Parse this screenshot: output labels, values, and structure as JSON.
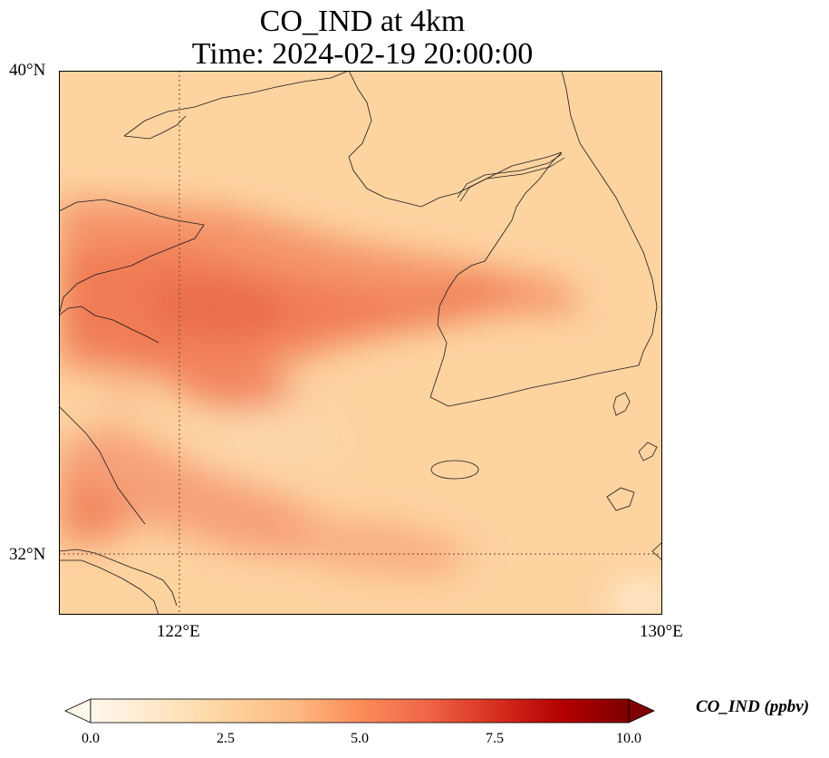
{
  "title": {
    "line1": "CO_IND at 4km",
    "line2": "Time: 2024-02-19 20:00:00"
  },
  "map": {
    "extent": {
      "lon_min": 120,
      "lon_max": 130,
      "lat_min": 31,
      "lat_max": 40
    },
    "lat_ticks": [
      {
        "value": 40,
        "label": "40°N"
      },
      {
        "value": 32,
        "label": "32°N"
      }
    ],
    "lon_ticks": [
      {
        "value": 122,
        "label": "122°E"
      },
      {
        "value": 130,
        "label": "130°E"
      }
    ],
    "gridlines": "dotted",
    "variable": "CO_IND",
    "units": "ppbv"
  },
  "colorbar": {
    "label": "CO_IND (ppbv)",
    "colormap": "OrRd",
    "range": [
      0.0,
      10.0
    ],
    "extend": "both",
    "ticks": [
      "0.0",
      "2.5",
      "5.0",
      "7.5",
      "10.0"
    ],
    "stops": [
      "#fff7ec",
      "#fee8c8",
      "#fdd49e",
      "#fdbb84",
      "#fc8d59",
      "#ef6548",
      "#d7301f",
      "#b30000",
      "#7f0000"
    ]
  }
}
